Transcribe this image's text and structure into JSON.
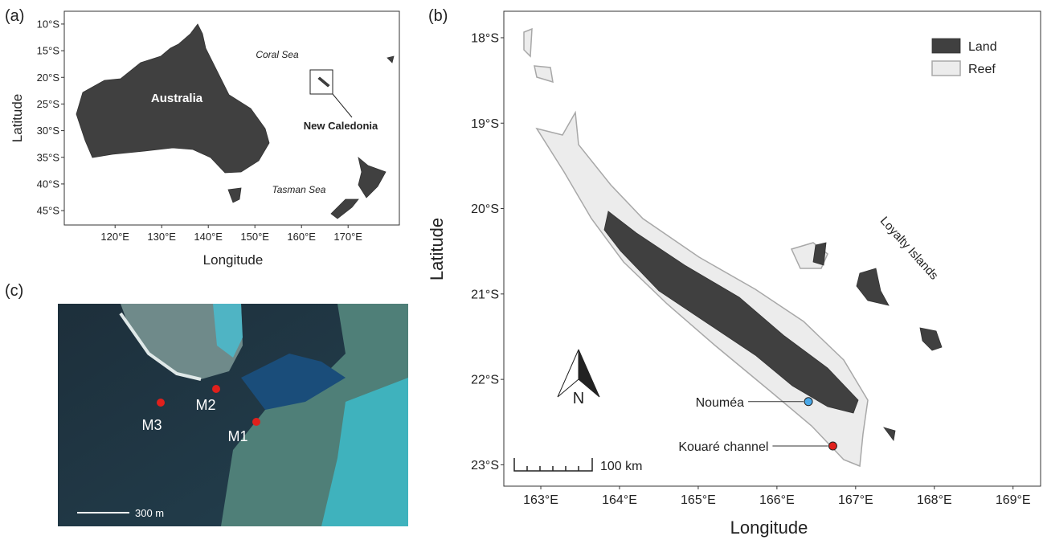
{
  "panel_a": {
    "tag": "(a)",
    "x_label": "Longitude",
    "y_label": "Latitude",
    "xlim": [
      109.1,
      181.0
    ],
    "ylim": [
      -47.7,
      -7.6
    ],
    "xticks": [
      {
        "value": 120,
        "label": "120°E"
      },
      {
        "value": 130,
        "label": "130°E"
      },
      {
        "value": 140,
        "label": "140°E"
      },
      {
        "value": 150,
        "label": "150°E"
      },
      {
        "value": 160,
        "label": "160°E"
      },
      {
        "value": 170,
        "label": "170°E"
      }
    ],
    "yticks": [
      {
        "value": -10,
        "label": "10°S"
      },
      {
        "value": -15,
        "label": "15°S"
      },
      {
        "value": -20,
        "label": "20°S"
      },
      {
        "value": -25,
        "label": "25°S"
      },
      {
        "value": -30,
        "label": "30°S"
      },
      {
        "value": -35,
        "label": "35°S"
      },
      {
        "value": -40,
        "label": "40°S"
      },
      {
        "value": -45,
        "label": "45°S"
      }
    ],
    "labels": {
      "australia": "Australia",
      "coral_sea": "Coral Sea",
      "tasman_sea": "Tasman Sea",
      "new_caledonia": "New Caledonia"
    }
  },
  "panel_b": {
    "tag": "(b)",
    "x_label": "Longitude",
    "y_label": "Latitude",
    "xlim": [
      162.53,
      169.35
    ],
    "ylim": [
      -23.25,
      -17.69
    ],
    "xticks": [
      {
        "value": 163,
        "label": "163°E"
      },
      {
        "value": 164,
        "label": "164°E"
      },
      {
        "value": 165,
        "label": "165°E"
      },
      {
        "value": 166,
        "label": "166°E"
      },
      {
        "value": 167,
        "label": "167°E"
      },
      {
        "value": 168,
        "label": "168°E"
      },
      {
        "value": 169,
        "label": "169°E"
      }
    ],
    "yticks": [
      {
        "value": -18,
        "label": "18°S"
      },
      {
        "value": -19,
        "label": "19°S"
      },
      {
        "value": -20,
        "label": "20°S"
      },
      {
        "value": -21,
        "label": "21°S"
      },
      {
        "value": -22,
        "label": "22°S"
      },
      {
        "value": -23,
        "label": "23°S"
      }
    ],
    "legend": [
      "Land",
      "Reef"
    ],
    "loyalty": "Loyalty Islands",
    "north": "N",
    "scale": "100 km",
    "places": [
      {
        "name": "Nouméa",
        "lon": 166.4,
        "lat": -22.26
      },
      {
        "name": "Kouaré channel",
        "lon": 166.71,
        "lat": -22.78
      }
    ]
  },
  "panel_c": {
    "tag": "(c)",
    "sites": [
      "M1",
      "M2",
      "M3"
    ],
    "scale": "300 m"
  }
}
